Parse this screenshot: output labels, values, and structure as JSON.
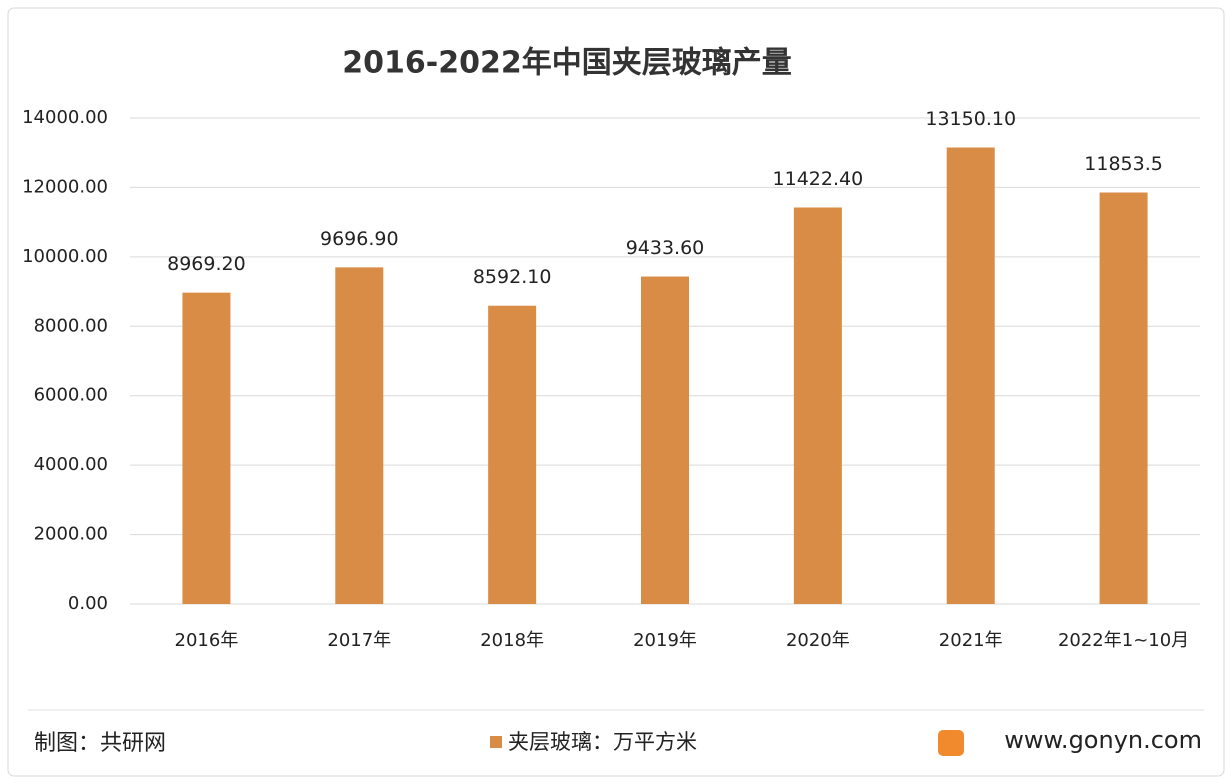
{
  "chart_data": {
    "type": "bar",
    "title": "2016-2022年中国夹层玻璃产量",
    "categories": [
      "2016年",
      "2017年",
      "2018年",
      "2019年",
      "2020年",
      "2021年",
      "2022年1~10月"
    ],
    "series": [
      {
        "name": "夹层玻璃：万平方米",
        "color": "#d98c45",
        "values": [
          8969.2,
          9696.9,
          8592.1,
          9433.6,
          11422.4,
          13150.1,
          11853.5
        ],
        "value_labels": [
          "8969.20",
          "9696.90",
          "8592.10",
          "9433.60",
          "11422.40",
          "13150.10",
          "11853.5"
        ]
      }
    ],
    "ylim": [
      0,
      14000
    ],
    "yticks": [
      {
        "value": 0,
        "label": "0.00"
      },
      {
        "value": 2000,
        "label": "2000.00"
      },
      {
        "value": 4000,
        "label": "4000.00"
      },
      {
        "value": 6000,
        "label": "6000.00"
      },
      {
        "value": 8000,
        "label": "8000.00"
      },
      {
        "value": 10000,
        "label": "10000.00"
      },
      {
        "value": 12000,
        "label": "12000.00"
      },
      {
        "value": 14000,
        "label": "14000.00"
      }
    ],
    "grid": true,
    "legend": "bottom",
    "source": "制图：共研网",
    "website": "www.gonyn.com"
  }
}
